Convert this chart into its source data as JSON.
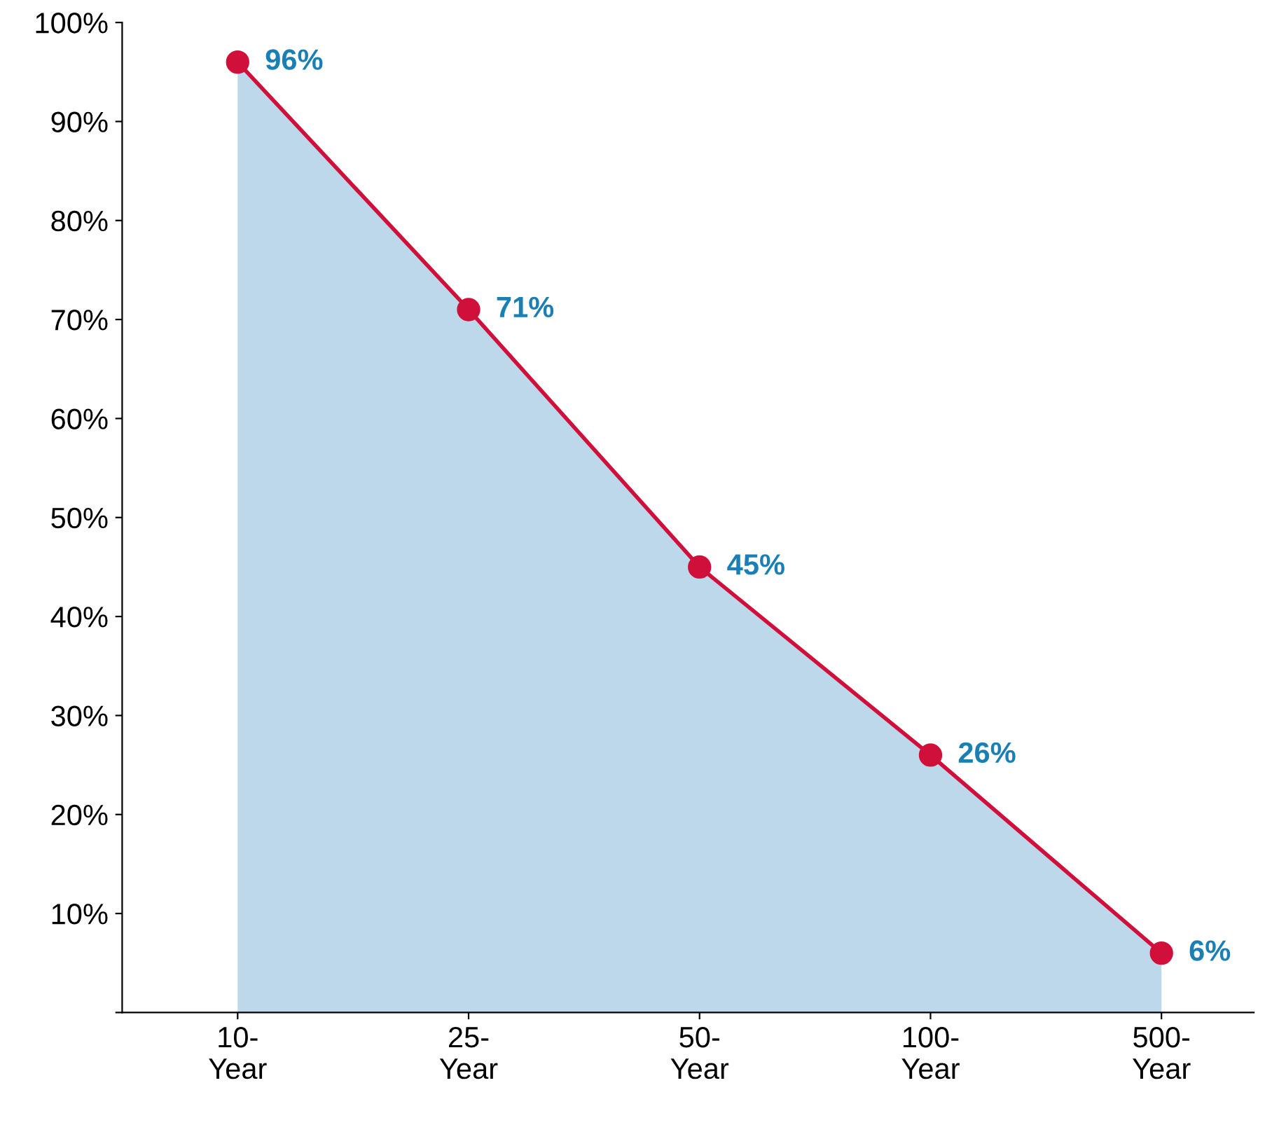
{
  "chart_data": {
    "type": "area",
    "categories": [
      "10-\nYear",
      "25-\nYear",
      "50-\nYear",
      "100-\nYear",
      "500-\nYear"
    ],
    "series": [
      {
        "color": "#d0103a",
        "values": [
          96,
          71,
          45,
          26,
          6
        ],
        "value_labels": [
          "96%",
          "71%",
          "45%",
          "26%",
          "6%"
        ]
      }
    ],
    "ylim": [
      0,
      100
    ],
    "yticks": [
      {
        "value": 0,
        "label": null
      },
      {
        "value": 10,
        "label": "10%"
      },
      {
        "value": 20,
        "label": "20%"
      },
      {
        "value": 30,
        "label": "30%"
      },
      {
        "value": 40,
        "label": "40%"
      },
      {
        "value": 50,
        "label": "50%"
      },
      {
        "value": 60,
        "label": "60%"
      },
      {
        "value": 70,
        "label": "70%"
      },
      {
        "value": 80,
        "label": "80%"
      },
      {
        "value": 90,
        "label": "90%"
      },
      {
        "value": 100,
        "label": "100%"
      }
    ],
    "marker": "circle",
    "grid": false,
    "legend": false
  }
}
